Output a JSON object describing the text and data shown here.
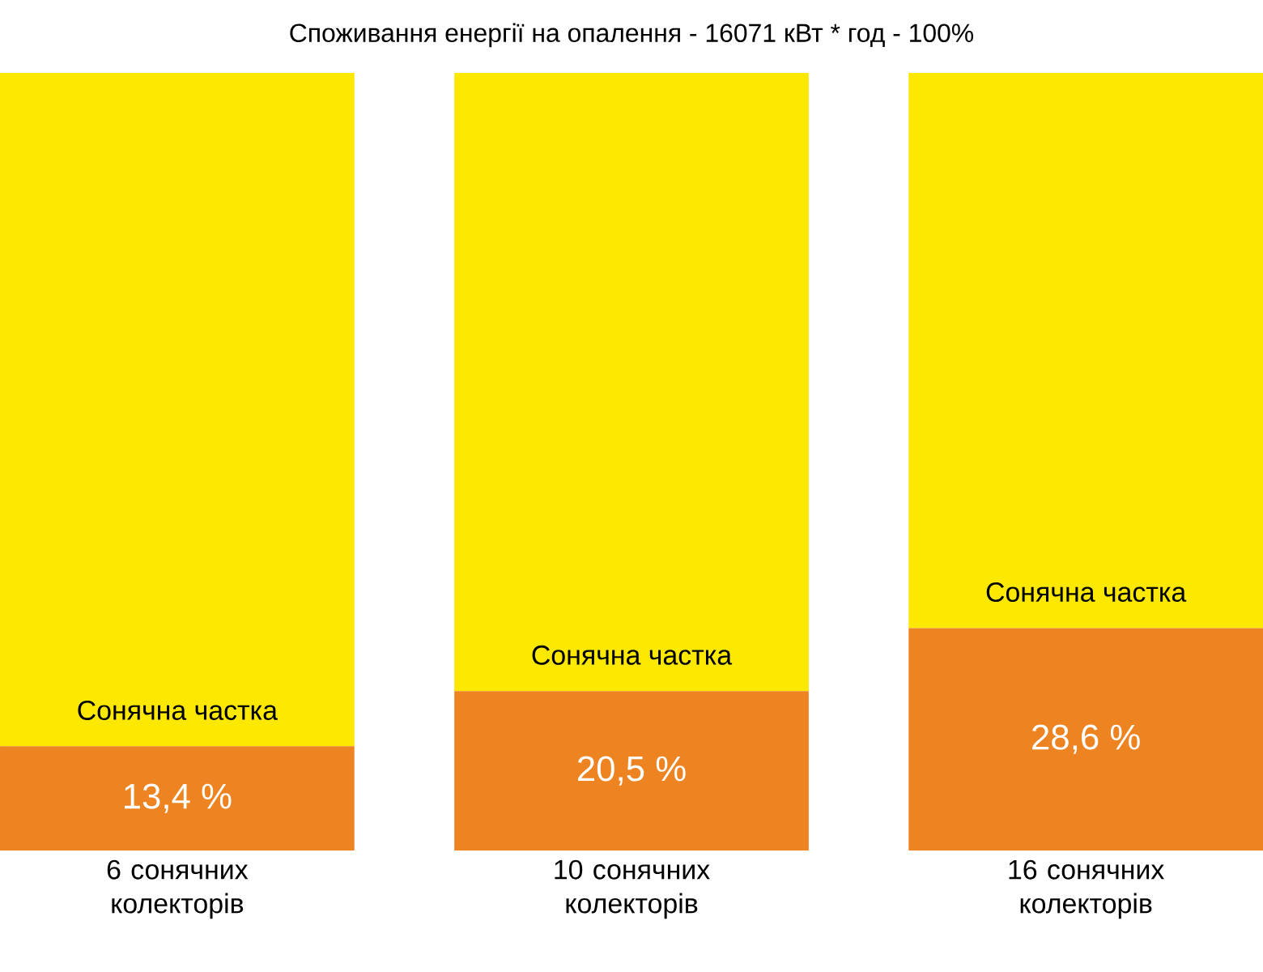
{
  "chart_data": {
    "type": "bar",
    "title": "Споживання енергії на опалення - 16071 кВт * год - 100%",
    "categories": [
      "6 сонячних колекторів",
      "10 сонячних колекторів",
      "16 сонячних колекторів"
    ],
    "stacked": true,
    "ylim": [
      0,
      100
    ],
    "series": [
      {
        "color": "#ee8321",
        "values": [
          13.4,
          20.5,
          28.6
        ],
        "value_labels": [
          "13,4 %",
          "20,5 %",
          "28,6 %"
        ]
      },
      {
        "color": "#fce800",
        "values": [
          86.6,
          79.5,
          71.4
        ]
      }
    ],
    "annotations": [
      {
        "text": "Сонячна частка",
        "x": "6 сонячних колекторів",
        "y": 13.4
      },
      {
        "text": "Сонячна частка",
        "x": "10 сонячних колекторів",
        "y": 20.5
      },
      {
        "text": "Сонячна частка",
        "x": "16 сонячних колекторів",
        "y": 28.6
      }
    ]
  }
}
